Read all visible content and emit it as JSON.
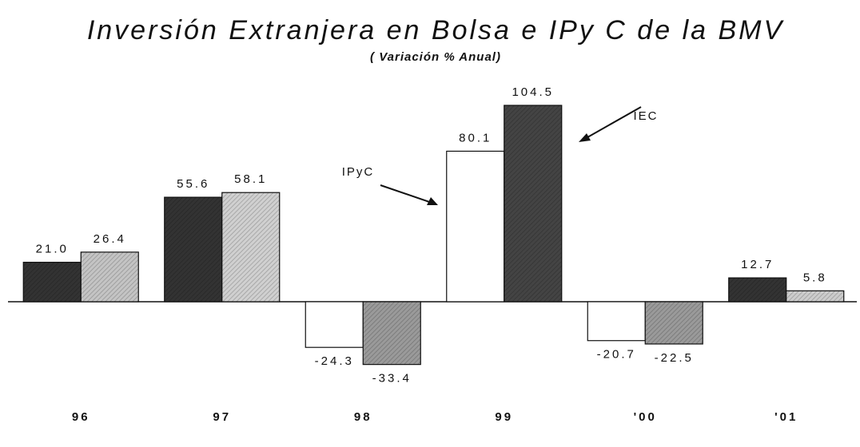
{
  "chart_data": {
    "type": "bar",
    "title": "Inversión Extranjera en Bolsa e IPy C de la BMV",
    "subtitle": "( Variación % Anual)",
    "categories": [
      "96",
      "97",
      "98",
      "99",
      "'00",
      "'01"
    ],
    "series": [
      {
        "name": "IPyC",
        "values": [
          21.0,
          55.6,
          -24.3,
          80.1,
          -20.7,
          12.7
        ],
        "value_labels": [
          "21.0",
          "55.6",
          "-24.3",
          "80.1",
          "-20.7",
          "12.7"
        ],
        "colors": [
          "#333333",
          "#333333",
          "#ffffff",
          "#ffffff",
          "#ffffff",
          "#333333"
        ]
      },
      {
        "name": "IEC",
        "values": [
          26.4,
          58.1,
          -33.4,
          104.5,
          -22.5,
          5.8
        ],
        "value_labels": [
          "26.4",
          "58.1",
          "-33.4",
          "104.5",
          "-22.5",
          "5.8"
        ],
        "colors": [
          "#c4c4c4",
          "#d0d0d0",
          "#9a9a9a",
          "#444444",
          "#9a9a9a",
          "#cccccc"
        ]
      }
    ],
    "ylim": [
      -50,
      120
    ]
  }
}
